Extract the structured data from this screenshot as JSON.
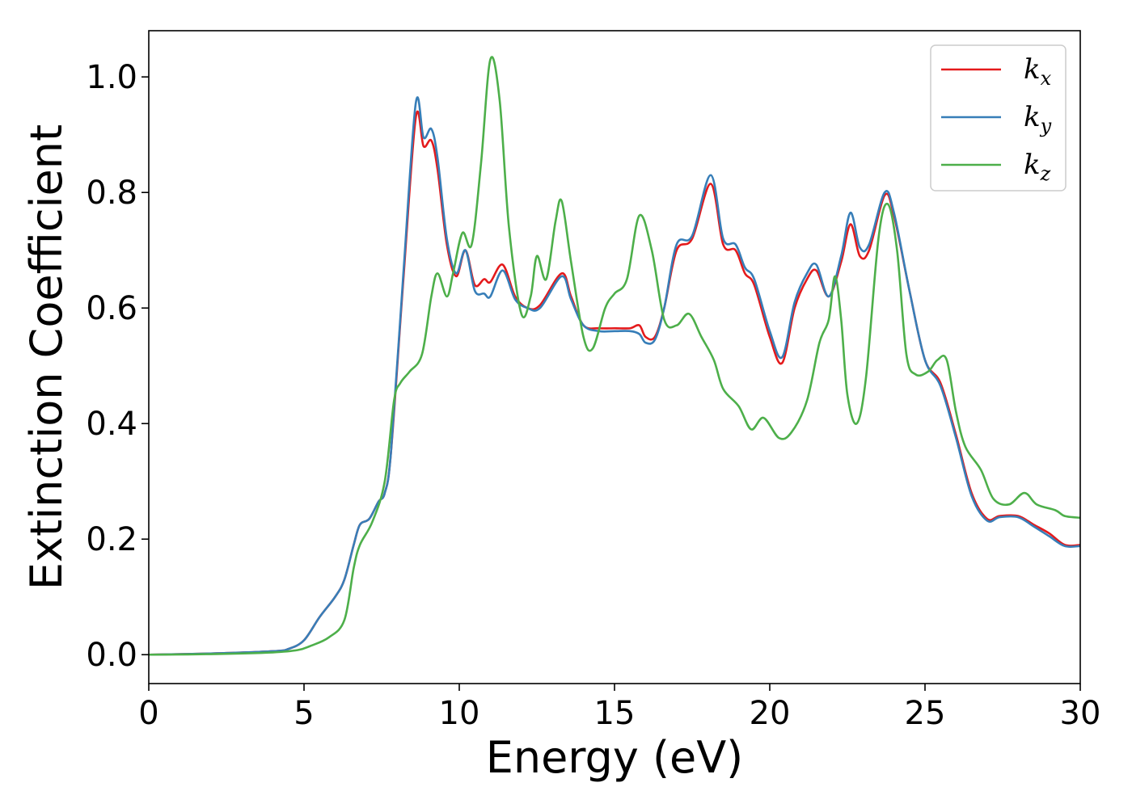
{
  "chart_data": {
    "type": "line",
    "xlabel": "Energy (eV)",
    "ylabel": "Extinction Coefficient",
    "xlim": [
      0,
      30
    ],
    "ylim": [
      -0.05,
      1.08
    ],
    "xticks": [
      0,
      5,
      10,
      15,
      20,
      25,
      30
    ],
    "xtick_labels": [
      "0",
      "5",
      "10",
      "15",
      "20",
      "25",
      "30"
    ],
    "yticks": [
      0.0,
      0.2,
      0.4,
      0.6,
      0.8,
      1.0
    ],
    "ytick_labels": [
      "0.0",
      "0.2",
      "0.4",
      "0.6",
      "0.8",
      "1.0"
    ],
    "grid": false,
    "legend_position": "top-right",
    "series": [
      {
        "name": "k_x",
        "label_main": "k",
        "label_sub": "x",
        "color": "#e41a1c",
        "points": [
          [
            0,
            0.0
          ],
          [
            2,
            0.002
          ],
          [
            4,
            0.006
          ],
          [
            4.5,
            0.01
          ],
          [
            5,
            0.025
          ],
          [
            5.5,
            0.065
          ],
          [
            6,
            0.1
          ],
          [
            6.3,
            0.13
          ],
          [
            6.6,
            0.19
          ],
          [
            6.8,
            0.225
          ],
          [
            7.1,
            0.235
          ],
          [
            7.4,
            0.265
          ],
          [
            7.6,
            0.28
          ],
          [
            7.8,
            0.35
          ],
          [
            8.2,
            0.65
          ],
          [
            8.6,
            0.93
          ],
          [
            8.85,
            0.88
          ],
          [
            9.1,
            0.89
          ],
          [
            9.3,
            0.84
          ],
          [
            9.6,
            0.71
          ],
          [
            9.9,
            0.655
          ],
          [
            10.2,
            0.7
          ],
          [
            10.5,
            0.64
          ],
          [
            10.8,
            0.65
          ],
          [
            11,
            0.645
          ],
          [
            11.4,
            0.675
          ],
          [
            11.8,
            0.62
          ],
          [
            12.2,
            0.6
          ],
          [
            12.6,
            0.605
          ],
          [
            13.3,
            0.66
          ],
          [
            13.6,
            0.62
          ],
          [
            14,
            0.57
          ],
          [
            14.5,
            0.565
          ],
          [
            15,
            0.565
          ],
          [
            15.5,
            0.565
          ],
          [
            15.8,
            0.57
          ],
          [
            16,
            0.55
          ],
          [
            16.3,
            0.55
          ],
          [
            16.6,
            0.6
          ],
          [
            17,
            0.7
          ],
          [
            17.5,
            0.72
          ],
          [
            18.1,
            0.815
          ],
          [
            18.5,
            0.71
          ],
          [
            18.9,
            0.7
          ],
          [
            19.2,
            0.66
          ],
          [
            19.5,
            0.64
          ],
          [
            20,
            0.55
          ],
          [
            20.4,
            0.505
          ],
          [
            20.8,
            0.6
          ],
          [
            21.2,
            0.65
          ],
          [
            21.5,
            0.665
          ],
          [
            21.9,
            0.62
          ],
          [
            22.3,
            0.68
          ],
          [
            22.6,
            0.745
          ],
          [
            22.9,
            0.69
          ],
          [
            23.2,
            0.7
          ],
          [
            23.7,
            0.795
          ],
          [
            24,
            0.76
          ],
          [
            24.5,
            0.63
          ],
          [
            25,
            0.51
          ],
          [
            25.5,
            0.47
          ],
          [
            26,
            0.38
          ],
          [
            26.5,
            0.28
          ],
          [
            27,
            0.235
          ],
          [
            27.4,
            0.24
          ],
          [
            28,
            0.24
          ],
          [
            28.5,
            0.225
          ],
          [
            29,
            0.21
          ],
          [
            29.5,
            0.19
          ],
          [
            30,
            0.19
          ]
        ]
      },
      {
        "name": "k_y",
        "label_main": "k",
        "label_sub": "y",
        "color": "#377eb8",
        "points": [
          [
            0,
            0.0
          ],
          [
            2,
            0.002
          ],
          [
            4,
            0.006
          ],
          [
            4.5,
            0.01
          ],
          [
            5,
            0.025
          ],
          [
            5.5,
            0.065
          ],
          [
            6,
            0.1
          ],
          [
            6.3,
            0.13
          ],
          [
            6.6,
            0.19
          ],
          [
            6.8,
            0.225
          ],
          [
            7.1,
            0.235
          ],
          [
            7.4,
            0.265
          ],
          [
            7.6,
            0.28
          ],
          [
            7.8,
            0.35
          ],
          [
            8.2,
            0.66
          ],
          [
            8.6,
            0.955
          ],
          [
            8.85,
            0.895
          ],
          [
            9.1,
            0.91
          ],
          [
            9.3,
            0.86
          ],
          [
            9.6,
            0.72
          ],
          [
            9.9,
            0.66
          ],
          [
            10.2,
            0.7
          ],
          [
            10.5,
            0.63
          ],
          [
            10.8,
            0.625
          ],
          [
            11,
            0.62
          ],
          [
            11.4,
            0.665
          ],
          [
            11.8,
            0.615
          ],
          [
            12.2,
            0.6
          ],
          [
            12.6,
            0.6
          ],
          [
            13.3,
            0.655
          ],
          [
            13.6,
            0.615
          ],
          [
            14,
            0.57
          ],
          [
            14.5,
            0.56
          ],
          [
            15,
            0.56
          ],
          [
            15.5,
            0.56
          ],
          [
            15.8,
            0.555
          ],
          [
            16,
            0.54
          ],
          [
            16.3,
            0.545
          ],
          [
            16.6,
            0.6
          ],
          [
            17,
            0.71
          ],
          [
            17.5,
            0.725
          ],
          [
            18.1,
            0.83
          ],
          [
            18.5,
            0.72
          ],
          [
            18.9,
            0.71
          ],
          [
            19.2,
            0.67
          ],
          [
            19.5,
            0.65
          ],
          [
            20,
            0.56
          ],
          [
            20.4,
            0.515
          ],
          [
            20.8,
            0.61
          ],
          [
            21.2,
            0.66
          ],
          [
            21.5,
            0.675
          ],
          [
            21.9,
            0.62
          ],
          [
            22.3,
            0.69
          ],
          [
            22.6,
            0.765
          ],
          [
            22.9,
            0.705
          ],
          [
            23.2,
            0.71
          ],
          [
            23.7,
            0.8
          ],
          [
            24,
            0.765
          ],
          [
            24.5,
            0.63
          ],
          [
            25,
            0.51
          ],
          [
            25.5,
            0.465
          ],
          [
            26,
            0.375
          ],
          [
            26.5,
            0.275
          ],
          [
            27,
            0.232
          ],
          [
            27.4,
            0.238
          ],
          [
            28,
            0.238
          ],
          [
            28.5,
            0.222
          ],
          [
            29,
            0.205
          ],
          [
            29.5,
            0.188
          ],
          [
            30,
            0.188
          ]
        ]
      },
      {
        "name": "k_z",
        "label_main": "k",
        "label_sub": "z",
        "color": "#4daf4a",
        "points": [
          [
            0,
            0.0
          ],
          [
            2,
            0.001
          ],
          [
            4,
            0.004
          ],
          [
            4.8,
            0.008
          ],
          [
            5.2,
            0.015
          ],
          [
            5.8,
            0.03
          ],
          [
            6.3,
            0.06
          ],
          [
            6.6,
            0.15
          ],
          [
            6.8,
            0.19
          ],
          [
            7.2,
            0.23
          ],
          [
            7.6,
            0.3
          ],
          [
            7.9,
            0.44
          ],
          [
            8.1,
            0.47
          ],
          [
            8.4,
            0.49
          ],
          [
            8.8,
            0.52
          ],
          [
            9.1,
            0.62
          ],
          [
            9.3,
            0.66
          ],
          [
            9.6,
            0.62
          ],
          [
            9.8,
            0.66
          ],
          [
            10.1,
            0.73
          ],
          [
            10.4,
            0.71
          ],
          [
            10.7,
            0.85
          ],
          [
            11,
            1.03
          ],
          [
            11.3,
            0.96
          ],
          [
            11.6,
            0.74
          ],
          [
            12,
            0.59
          ],
          [
            12.3,
            0.62
          ],
          [
            12.5,
            0.69
          ],
          [
            12.8,
            0.65
          ],
          [
            13.1,
            0.75
          ],
          [
            13.3,
            0.785
          ],
          [
            13.6,
            0.68
          ],
          [
            14,
            0.55
          ],
          [
            14.3,
            0.53
          ],
          [
            14.7,
            0.6
          ],
          [
            15,
            0.625
          ],
          [
            15.4,
            0.65
          ],
          [
            15.8,
            0.76
          ],
          [
            16.2,
            0.7
          ],
          [
            16.6,
            0.58
          ],
          [
            17,
            0.57
          ],
          [
            17.4,
            0.59
          ],
          [
            17.8,
            0.55
          ],
          [
            18.2,
            0.51
          ],
          [
            18.5,
            0.46
          ],
          [
            19,
            0.43
          ],
          [
            19.4,
            0.39
          ],
          [
            19.8,
            0.41
          ],
          [
            20.3,
            0.375
          ],
          [
            20.7,
            0.385
          ],
          [
            21.2,
            0.44
          ],
          [
            21.6,
            0.54
          ],
          [
            21.9,
            0.58
          ],
          [
            22.1,
            0.655
          ],
          [
            22.3,
            0.58
          ],
          [
            22.5,
            0.45
          ],
          [
            22.8,
            0.4
          ],
          [
            23.1,
            0.48
          ],
          [
            23.5,
            0.72
          ],
          [
            23.8,
            0.78
          ],
          [
            24.1,
            0.7
          ],
          [
            24.4,
            0.52
          ],
          [
            24.7,
            0.485
          ],
          [
            25.1,
            0.49
          ],
          [
            25.4,
            0.51
          ],
          [
            25.7,
            0.51
          ],
          [
            26,
            0.42
          ],
          [
            26.3,
            0.36
          ],
          [
            26.8,
            0.32
          ],
          [
            27.2,
            0.27
          ],
          [
            27.7,
            0.26
          ],
          [
            28.2,
            0.28
          ],
          [
            28.6,
            0.26
          ],
          [
            29.2,
            0.25
          ],
          [
            29.5,
            0.24
          ],
          [
            30,
            0.237
          ]
        ]
      }
    ]
  }
}
